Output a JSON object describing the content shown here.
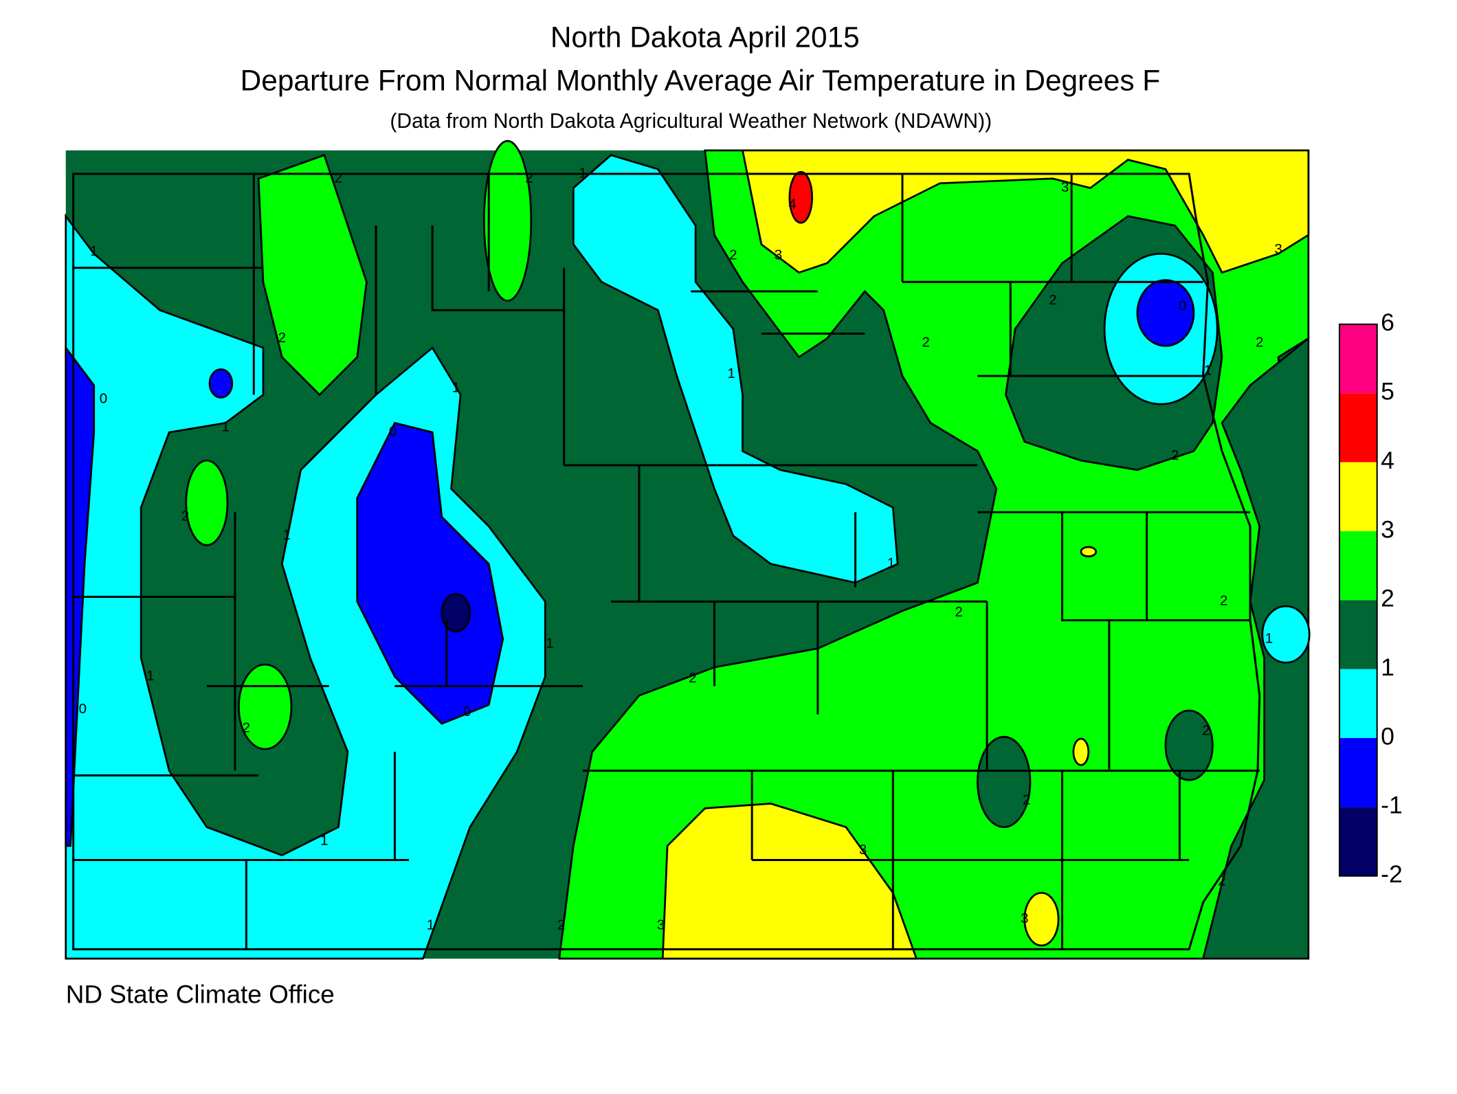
{
  "title": "North Dakota April 2015",
  "subtitle": "Departure From Normal Monthly Average Air Temperature in Degrees F",
  "source_note": "(Data from North Dakota Agricultural Weather Network (NDAWN))",
  "footer": "ND State Climate Office",
  "legend": {
    "ticks": [
      -2,
      -1,
      0,
      1,
      2,
      3,
      4,
      5,
      6
    ],
    "colors": [
      "#000066",
      "#0000ff",
      "#00ffff",
      "#006633",
      "#00ff00",
      "#ffff00",
      "#ff0000",
      "#ff0080"
    ]
  },
  "contour_labels": [
    "1",
    "2",
    "2",
    "1",
    "2",
    "3",
    "4",
    "3",
    "3",
    "2",
    "0",
    "2",
    "1",
    "2",
    "1",
    "2",
    "0",
    "1",
    "1",
    "0",
    "2",
    "1",
    "1",
    "2",
    "2",
    "2",
    "1",
    "1",
    "1",
    "2",
    "0",
    "2",
    "0",
    "2",
    "2",
    "1",
    "3",
    "3",
    "2",
    "1",
    "2",
    "3"
  ]
}
